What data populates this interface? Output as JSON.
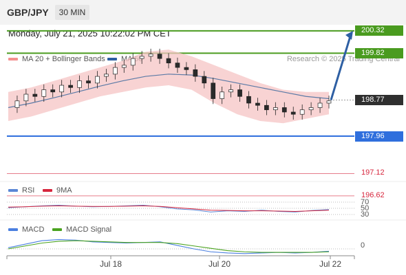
{
  "header": {
    "symbol": "GBP/JPY",
    "interval": "30 MIN",
    "datetime": "Monday, July 21, 2025 10:22:02 PM CET"
  },
  "legend": {
    "ma_bands": "MA 20 + Bollinger Bands",
    "ma50": "MA 50"
  },
  "credit": "Research © 2025 Trading Central",
  "rsi_legend": {
    "rsi": "RSI",
    "ma": "9MA"
  },
  "macd_legend": {
    "macd": "MACD",
    "signal": "MACD Signal"
  },
  "colors": {
    "resistance": "#4a9b1f",
    "support": "#2f6fdd",
    "last": "#2f2f2f",
    "lower": "#d7263d",
    "arrow": "#2e5fa3",
    "ma50": "#5b7aa6",
    "band": "#f6c4c4",
    "macd": "#4a7fe0",
    "signal": "#4aa31f"
  },
  "chart_data": [
    {
      "type": "candlestick",
      "title": "GBP/JPY",
      "interval": "30 MIN",
      "x_tick_labels": [
        "Jul 18",
        "Jul 20",
        "Jul 22"
      ],
      "y_range": [
        196.4,
        200.6
      ],
      "levels": [
        {
          "label": "200.32",
          "value": 200.32,
          "kind": "resistance"
        },
        {
          "label": "199.82",
          "value": 199.82,
          "kind": "resistance"
        },
        {
          "label": "198.77",
          "value": 198.77,
          "kind": "last"
        },
        {
          "label": "197.96",
          "value": 197.96,
          "kind": "support"
        },
        {
          "label": "197.12",
          "value": 197.12,
          "kind": "lower"
        },
        {
          "label": "196.62",
          "value": 196.62,
          "kind": "lower"
        }
      ],
      "forecast_target": 200.32,
      "close_series": [
        198.6,
        198.75,
        198.9,
        198.85,
        199.0,
        198.95,
        199.1,
        199.05,
        199.2,
        199.15,
        199.3,
        199.35,
        199.5,
        199.55,
        199.7,
        199.75,
        199.8,
        199.7,
        199.6,
        199.5,
        199.45,
        199.3,
        199.15,
        198.8,
        198.95,
        199.0,
        198.85,
        198.7,
        198.65,
        198.55,
        198.6,
        198.5,
        198.45,
        198.55,
        198.6,
        198.7,
        198.75
      ],
      "ma50_series": [
        198.6,
        198.7,
        198.82,
        198.95,
        199.08,
        199.2,
        199.3,
        199.35,
        199.33,
        199.25,
        199.15,
        199.05,
        198.95,
        198.85,
        198.8
      ],
      "band_upper": [
        198.95,
        199.05,
        199.2,
        199.35,
        199.5,
        199.65,
        199.85,
        199.9,
        199.75,
        199.55,
        199.35,
        199.15,
        199.0,
        198.95,
        198.95
      ],
      "band_lower": [
        198.3,
        198.4,
        198.55,
        198.7,
        198.85,
        198.95,
        199.05,
        199.1,
        199.0,
        198.7,
        198.45,
        198.3,
        198.25,
        198.35,
        198.45
      ]
    },
    {
      "type": "line",
      "title": "RSI",
      "y_tick_labels": [
        "70",
        "50",
        "30"
      ],
      "series": [
        {
          "name": "RSI",
          "values": [
            52,
            55,
            58,
            60,
            57,
            55,
            56,
            58,
            60,
            55,
            48,
            45,
            38,
            42,
            40,
            44,
            40,
            38,
            43,
            46
          ]
        },
        {
          "name": "9MA",
          "values": [
            54,
            55,
            57,
            58,
            57,
            56,
            56,
            57,
            58,
            56,
            52,
            48,
            44,
            43,
            42,
            42,
            41,
            40,
            42,
            44
          ]
        }
      ]
    },
    {
      "type": "line",
      "title": "MACD",
      "y_tick_labels": [
        "0"
      ],
      "series": [
        {
          "name": "MACD",
          "values": [
            0.02,
            0.08,
            0.14,
            0.16,
            0.15,
            0.12,
            0.11,
            0.1,
            0.11,
            0.12,
            0.06,
            0.0,
            -0.05,
            -0.07,
            -0.08,
            -0.07,
            -0.06,
            -0.07,
            -0.06,
            -0.04
          ]
        },
        {
          "name": "MACD Signal",
          "values": [
            0.0,
            0.05,
            0.1,
            0.13,
            0.14,
            0.13,
            0.12,
            0.11,
            0.11,
            0.11,
            0.09,
            0.05,
            0.01,
            -0.03,
            -0.05,
            -0.06,
            -0.06,
            -0.06,
            -0.06,
            -0.05
          ]
        }
      ]
    }
  ]
}
